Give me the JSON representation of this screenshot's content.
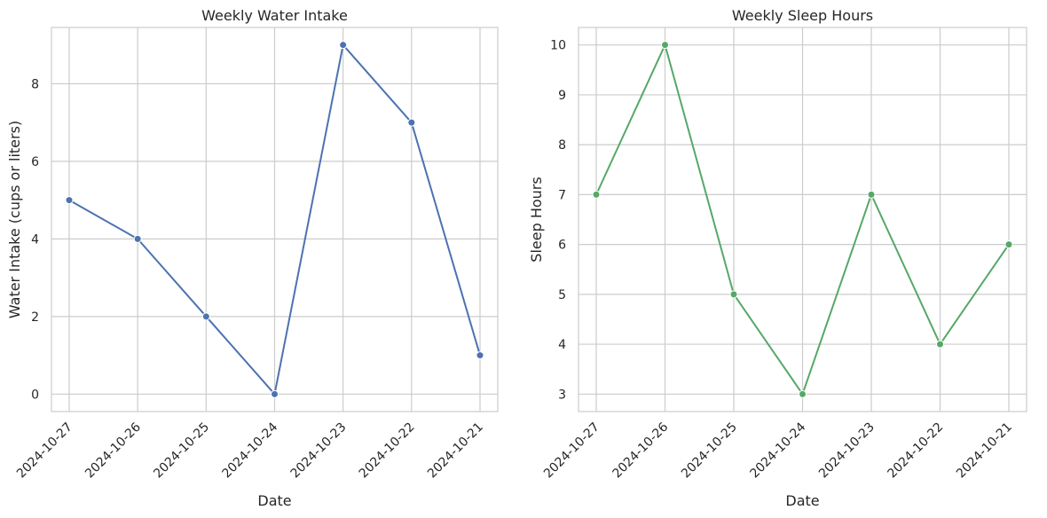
{
  "chart_data": [
    {
      "type": "line",
      "title": "Weekly Water Intake",
      "xlabel": "Date",
      "ylabel": "Water Intake (cups or liters)",
      "categories": [
        "2024-10-27",
        "2024-10-26",
        "2024-10-25",
        "2024-10-24",
        "2024-10-23",
        "2024-10-22",
        "2024-10-21"
      ],
      "values": [
        5,
        4,
        2,
        0,
        9,
        7,
        1
      ],
      "ylim": [
        -0.45,
        9.45
      ],
      "yticks": [
        0,
        2,
        4,
        6,
        8
      ],
      "color": "#4c72b0",
      "grid": true,
      "markers": true
    },
    {
      "type": "line",
      "title": "Weekly Sleep Hours",
      "xlabel": "Date",
      "ylabel": "Sleep Hours",
      "categories": [
        "2024-10-27",
        "2024-10-26",
        "2024-10-25",
        "2024-10-24",
        "2024-10-23",
        "2024-10-22",
        "2024-10-21"
      ],
      "values": [
        7,
        10,
        5,
        3,
        7,
        4,
        6
      ],
      "ylim": [
        2.65,
        10.35
      ],
      "yticks": [
        3,
        4,
        5,
        6,
        7,
        8,
        9,
        10
      ],
      "color": "#55a868",
      "grid": true,
      "markers": true
    }
  ]
}
